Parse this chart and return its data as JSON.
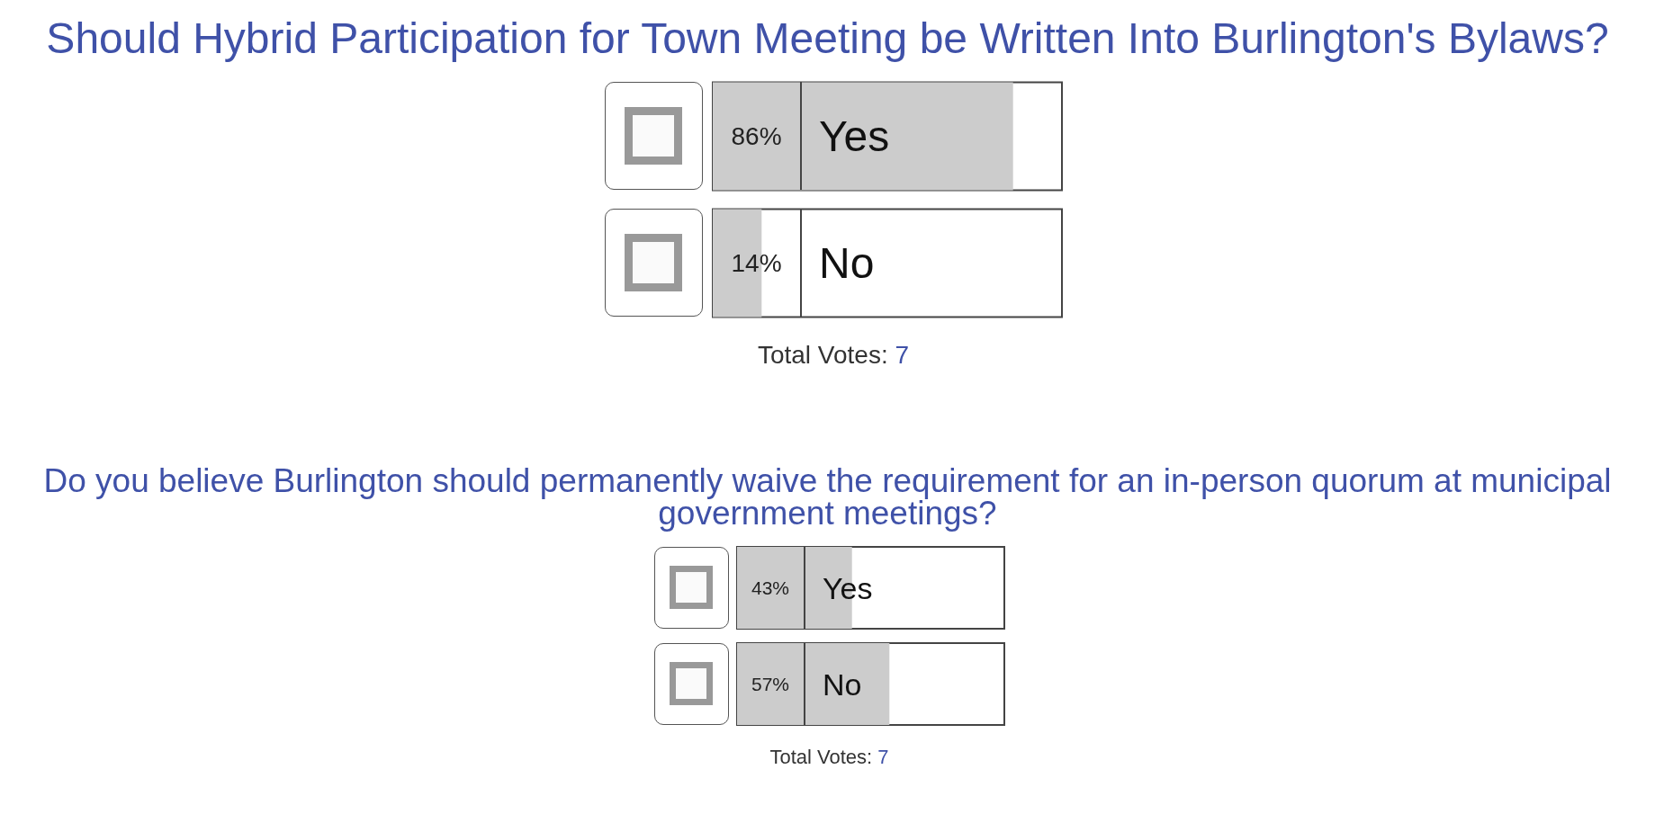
{
  "chart_data": [
    {
      "type": "bar",
      "orientation": "horizontal",
      "title": "Should Hybrid Participation for Town Meeting be Written Into Burlington's Bylaws?",
      "categories": [
        "Yes",
        "No"
      ],
      "values": [
        86,
        14
      ],
      "value_labels": [
        "86%",
        "14%"
      ],
      "color": "#cccccc",
      "xlim": [
        0,
        100
      ],
      "tick_labels": "y",
      "annotations": [
        "Total Votes: 7"
      ]
    },
    {
      "type": "bar",
      "orientation": "horizontal",
      "title": "Do you believe Burlington should permanently waive the requirement for an in-person quorum at municipal government meetings?",
      "categories": [
        "Yes",
        "No"
      ],
      "values": [
        43,
        57
      ],
      "value_labels": [
        "43%",
        "57%"
      ],
      "color": "#cccccc",
      "xlim": [
        0,
        100
      ],
      "tick_labels": "y",
      "annotations": [
        "Total Votes: 7"
      ]
    }
  ]
}
